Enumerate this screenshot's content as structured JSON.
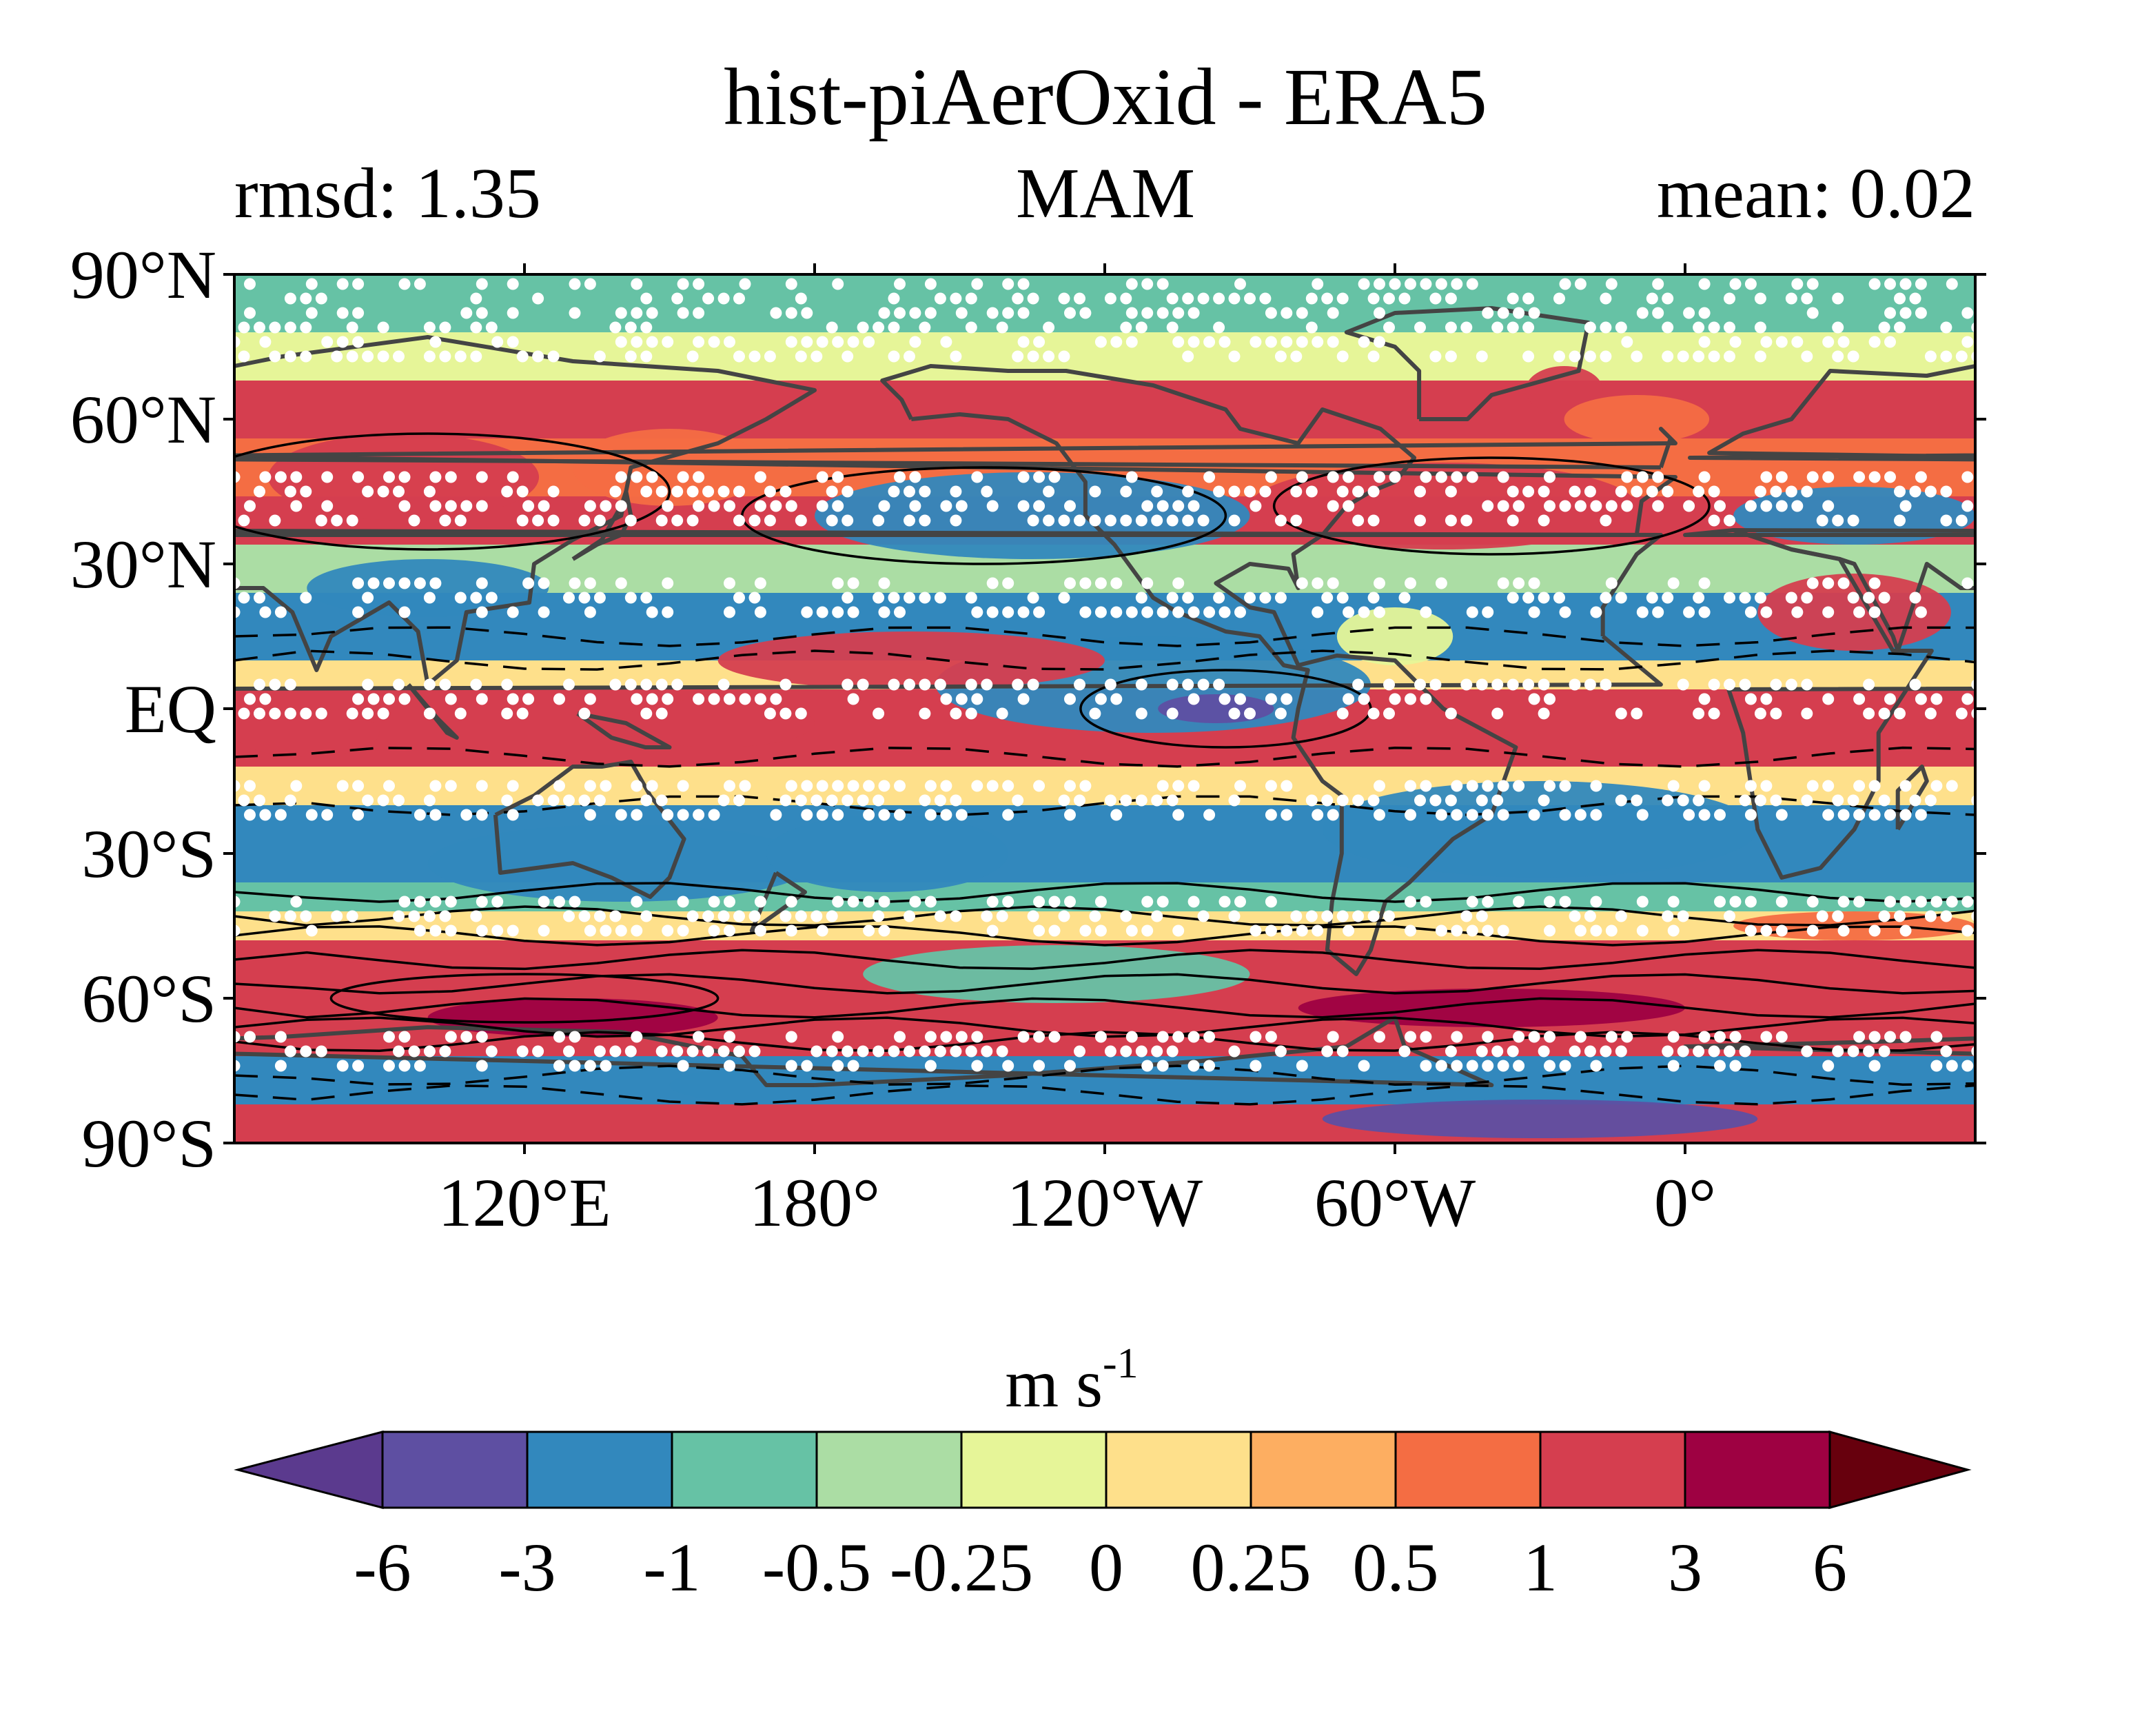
{
  "title": "hist-piAerOxid - ERA5",
  "subtitle": {
    "left": "rmsd: 1.35",
    "center": "MAM",
    "right": "mean: 0.02"
  },
  "map": {
    "projection": "equirectangular",
    "lon_range": [
      60,
      420
    ],
    "lat_range": [
      -90,
      90
    ],
    "lat_ticks": [
      {
        "value": 90,
        "label": "90°N"
      },
      {
        "value": 60,
        "label": "60°N"
      },
      {
        "value": 30,
        "label": "30°N"
      },
      {
        "value": 0,
        "label": "EQ"
      },
      {
        "value": -30,
        "label": "30°S"
      },
      {
        "value": -60,
        "label": "60°S"
      },
      {
        "value": -90,
        "label": "90°S"
      }
    ],
    "lon_ticks": [
      {
        "value": 120,
        "label": "120°E"
      },
      {
        "value": 180,
        "label": "180°"
      },
      {
        "value": 240,
        "label": "120°W"
      },
      {
        "value": 300,
        "label": "60°W"
      },
      {
        "value": 360,
        "label": "0°"
      }
    ],
    "stippling": true,
    "coastline_color": "#444444",
    "contour_color": "#000000"
  },
  "colorbar": {
    "unit_base": "m s",
    "unit_exp": "-1",
    "levels": [
      "-6",
      "-3",
      "-1",
      "-0.5",
      "-0.25",
      "0",
      "0.25",
      "0.5",
      "1",
      "3",
      "6"
    ],
    "colors": [
      "#5e4fa2",
      "#3288bd",
      "#66c2a5",
      "#abdda4",
      "#e6f598",
      "#fee08b",
      "#fdae61",
      "#f46d43",
      "#d53e4f",
      "#9e0142"
    ],
    "under_color": "#5b3a8e",
    "over_color": "#67000d"
  }
}
